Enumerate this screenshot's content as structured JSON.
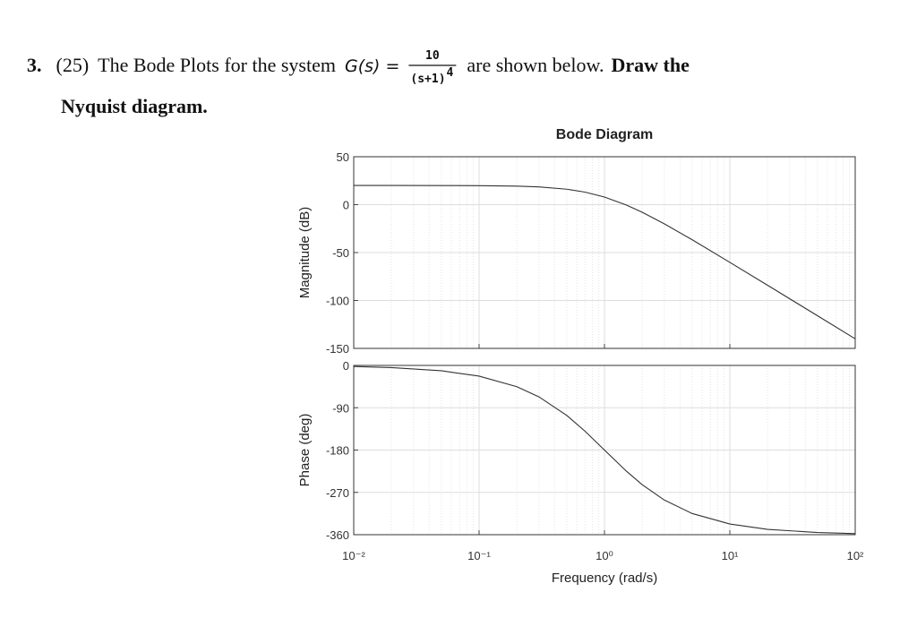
{
  "question": {
    "number": "3.",
    "points": "(25)",
    "text_before": "The Bode Plots for the system",
    "formula_lhs": "G(s) =",
    "numerator": "10",
    "denominator": "(s+1)",
    "exponent": "4",
    "text_after": "are shown below.",
    "bold_line1": "Draw the",
    "bold_line2": "Nyquist diagram."
  },
  "chart_data": [
    {
      "type": "line",
      "title": "Bode Diagram",
      "ylabel": "Magnitude (dB)",
      "xscale": "log",
      "grid": true,
      "x": [
        0.01,
        0.02,
        0.05,
        0.1,
        0.2,
        0.3,
        0.5,
        0.7,
        1,
        1.5,
        2,
        3,
        5,
        10,
        20,
        50,
        100
      ],
      "series": [
        {
          "color": "#333333",
          "values": [
            20,
            19.99,
            19.96,
            19.83,
            19.32,
            18.5,
            16.12,
            13.07,
            7.96,
            -0.48,
            -7.96,
            -20,
            -36.6,
            -60.2,
            -84.1,
            -115.9,
            -140
          ]
        }
      ],
      "xlim": [
        0.01,
        100
      ],
      "xticks": [
        0.01,
        0.1,
        1,
        10,
        100
      ],
      "ylim": [
        -150,
        50
      ],
      "yticks": [
        -150,
        -100,
        -50,
        0,
        50
      ]
    },
    {
      "type": "line",
      "xlabel": "Frequency (rad/s)",
      "ylabel": "Phase (deg)",
      "xscale": "log",
      "grid": true,
      "x": [
        0.01,
        0.02,
        0.05,
        0.1,
        0.2,
        0.3,
        0.5,
        0.7,
        1,
        1.5,
        2,
        3,
        5,
        10,
        20,
        50,
        100
      ],
      "series": [
        {
          "color": "#333333",
          "values": [
            -2.3,
            -4.6,
            -11.4,
            -22.8,
            -45.2,
            -66.8,
            -106.3,
            -140,
            -180,
            -225.2,
            -253.7,
            -286.3,
            -314.9,
            -337.2,
            -348.6,
            -355.4,
            -357.7
          ]
        }
      ],
      "xlim": [
        0.01,
        100
      ],
      "xticks": [
        {
          "value": 0.01,
          "label": "10⁻²"
        },
        {
          "value": 0.1,
          "label": "10⁻¹"
        },
        {
          "value": 1,
          "label": "10⁰"
        },
        {
          "value": 10,
          "label": "10¹"
        },
        {
          "value": 100,
          "label": "10²"
        }
      ],
      "ylim": [
        -360,
        0
      ],
      "yticks": [
        -360,
        -270,
        -180,
        -90,
        0
      ]
    }
  ]
}
